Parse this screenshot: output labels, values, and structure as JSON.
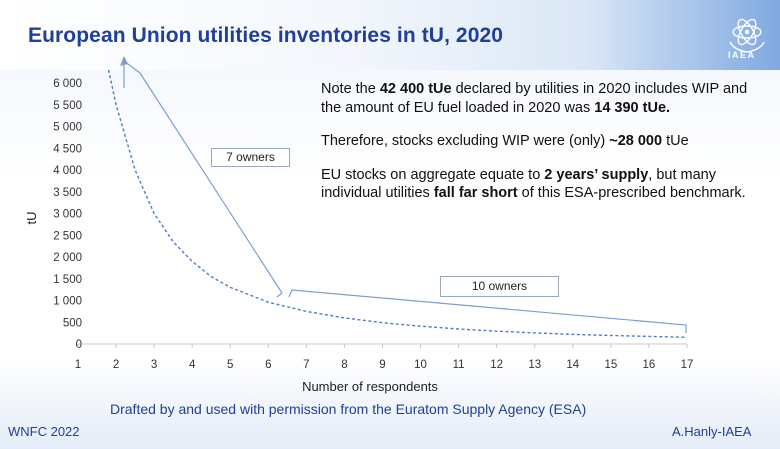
{
  "header": {
    "title": "European Union utilities inventories in tU, 2020",
    "logo_icon": "iaea-atom-logo-icon",
    "logo_text": "IAEA"
  },
  "chart_data": {
    "type": "line",
    "title": "",
    "xlabel": "Number of respondents",
    "ylabel": "tU",
    "x": [
      1.8,
      2,
      2.5,
      3,
      3.5,
      4,
      4.5,
      5,
      6,
      7,
      8,
      9,
      10,
      11,
      12,
      13,
      14,
      15,
      16,
      17
    ],
    "y": [
      6300,
      5500,
      4000,
      3000,
      2350,
      1900,
      1550,
      1300,
      960,
      750,
      600,
      490,
      410,
      345,
      295,
      255,
      220,
      195,
      175,
      155
    ],
    "xlim": [
      1,
      17
    ],
    "ylim": [
      0,
      6000
    ],
    "x_ticks": [
      "1",
      "2",
      "3",
      "4",
      "5",
      "6",
      "7",
      "8",
      "9",
      "10",
      "11",
      "12",
      "13",
      "14",
      "15",
      "16",
      "17"
    ],
    "y_ticks": [
      "0",
      "500",
      "1 000",
      "1 500",
      "2 000",
      "2 500",
      "3 000",
      "3 500",
      "4 000",
      "4 500",
      "5 000",
      "5 500",
      "6 000"
    ],
    "line_style": "dashed",
    "line_color": "#4a7cc9",
    "grid": false,
    "annotations": [
      "7 owners",
      "10 owners"
    ]
  },
  "note": {
    "p1": {
      "a": "Note the ",
      "b": "42 400 tUe",
      "c": " declared by utilities in 2020 includes WIP and the amount of EU fuel loaded in 2020 was ",
      "d": "14 390 tUe."
    },
    "p2": {
      "a": "Therefore, stocks excluding WIP were (only) ",
      "b": "~28 000",
      "c": " tUe"
    },
    "p3": {
      "a": "EU stocks on aggregate equate to ",
      "b": "2 years’ supply",
      "c": ", but many individual utilities ",
      "d": "fall far short",
      "e": " of this ESA-prescribed benchmark."
    }
  },
  "footer": {
    "credit": "Drafted by and used with permission from the Euratom Supply Agency (ESA)",
    "left": "WNFC 2022",
    "right": "A.Hanly-IAEA"
  }
}
